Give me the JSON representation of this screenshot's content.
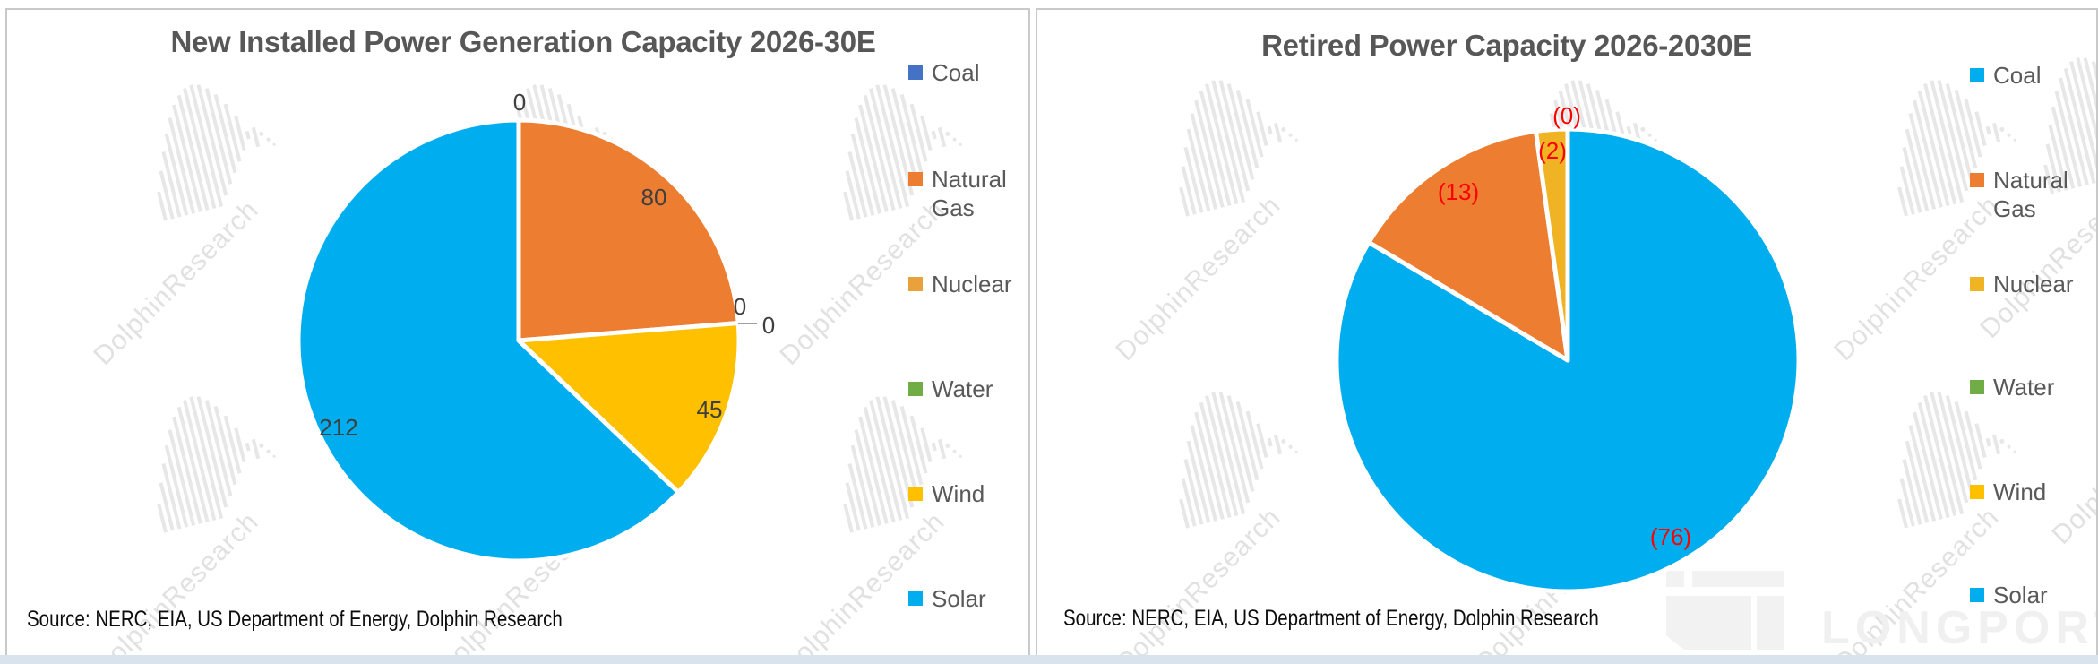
{
  "watermark": {
    "text": "DolphinResearch"
  },
  "brand": {
    "text": "LONGPORT"
  },
  "chart_data": [
    {
      "type": "pie",
      "title": "New Installed Power Generation Capacity 2026-30E",
      "source": "Source: NERC, EIA, US Department of Energy, Dolphin Research",
      "categories": [
        "Coal",
        "Natural Gas",
        "Nuclear",
        "Water",
        "Wind",
        "Solar"
      ],
      "values": [
        0,
        80,
        0,
        0,
        45,
        212
      ],
      "slice_labels": [
        "0",
        "80",
        "0",
        "0",
        "45",
        "212"
      ],
      "colors": [
        "#4472C4",
        "#ED7D31",
        "#E9A23B",
        "#70AD47",
        "#FFC000",
        "#00ADEF"
      ],
      "label_color": "#3F3F3F",
      "legend_position": "right",
      "start_angle_deg": 0,
      "direction": "clockwise",
      "legend": [
        {
          "label": "Coal",
          "color": "#4472C4"
        },
        {
          "label": "Natural Gas",
          "color": "#ED7D31"
        },
        {
          "label": "Nuclear",
          "color": "#E9A23B"
        },
        {
          "label": "Water",
          "color": "#70AD47"
        },
        {
          "label": "Wind",
          "color": "#FFC000"
        },
        {
          "label": "Solar",
          "color": "#00ADEF"
        }
      ]
    },
    {
      "type": "pie",
      "title": "Retired Power Capacity 2026-2030E",
      "source": "Source: NERC, EIA, US Department of Energy, Dolphin Research",
      "categories": [
        "Coal",
        "Natural Gas",
        "Nuclear",
        "Water",
        "Wind",
        "Solar"
      ],
      "values": [
        76,
        13,
        2,
        0,
        0,
        0
      ],
      "slice_labels": [
        "(76)",
        "(13)",
        "(2)",
        "(0)",
        "",
        ""
      ],
      "colors": [
        "#00ADEF",
        "#ED7D31",
        "#F0B323",
        "#70AD47",
        "#FFC000",
        "#00ADEF"
      ],
      "label_color": "#FF0000",
      "legend_position": "right",
      "start_angle_deg": 0,
      "direction": "clockwise",
      "legend": [
        {
          "label": "Coal",
          "color": "#00ADEF"
        },
        {
          "label": "Natural Gas",
          "color": "#ED7D31"
        },
        {
          "label": "Nuclear",
          "color": "#F0B323"
        },
        {
          "label": "Water",
          "color": "#70AD47"
        },
        {
          "label": "Wind",
          "color": "#FFC000"
        },
        {
          "label": "Solar",
          "color": "#00ADEF"
        }
      ]
    }
  ]
}
